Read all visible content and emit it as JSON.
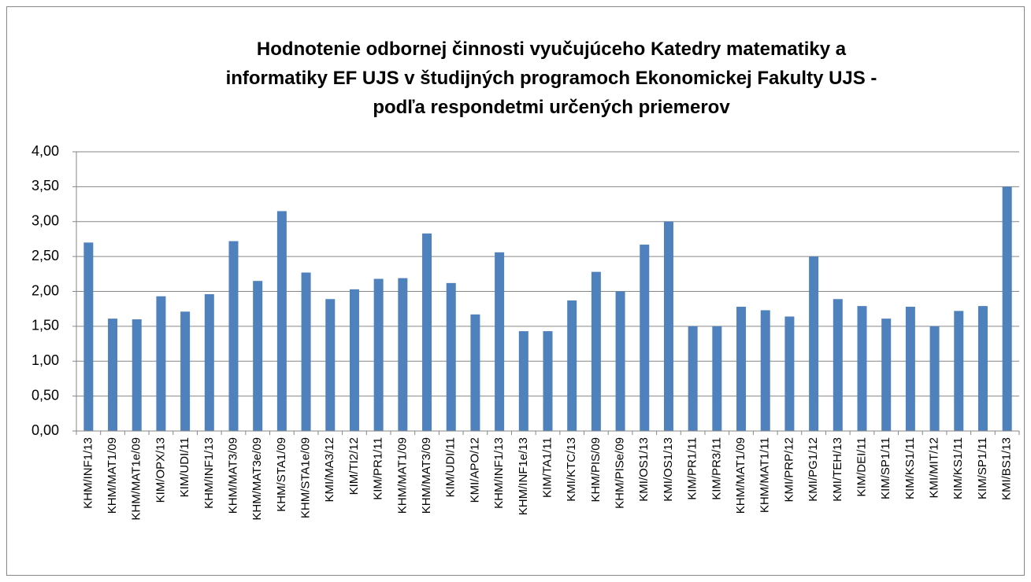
{
  "chart_data": {
    "type": "bar",
    "title": "Hodnotenie odbornej činnosti vyučujúceho Katedry matematiky a informatiky EF UJS v študijných programoch Ekonomickej Fakulty UJS - podľa respondetmi určených priemerov",
    "categories": [
      "KHM/INF1/13",
      "KHM/MAT1/09",
      "KHM/MAT1e/09",
      "KIM/OPX/13",
      "KIM/UDI/11",
      "KHM/INF1/13",
      "KHM/MAT3/09",
      "KHM/MAT3e/09",
      "KHM/STA1/09",
      "KHM/STA1e/09",
      "KMI/MA3/12",
      "KIM/TI2/12",
      "KIM/PR1/11",
      "KHM/MAT1/09",
      "KHM/MAT3/09",
      "KIM/UDI/11",
      "KMI/APO/12",
      "KHM/INF1/13",
      "KHM/INF1e/13",
      "KIM/TA1/11",
      "KMI/KTC/13",
      "KHM/PIS/09",
      "KHM/PISe/09",
      "KMI/OS1/13",
      "KMI/OS1/13",
      "KIM/PR1/11",
      "KIM/PR3/11",
      "KHM/MAT1/09",
      "KHM/MAT1/11",
      "KMI/PRP/12",
      "KMI/PG1/12",
      "KMI/TEH/13",
      "KIM/DEI/11",
      "KIM/SP1/11",
      "KIM/KS1/11",
      "KMI/MIT/12",
      "KIM/KS1/11",
      "KIM/SP1/11",
      "KMI/BS1/13"
    ],
    "values": [
      2.7,
      1.61,
      1.6,
      1.93,
      1.71,
      1.96,
      2.72,
      2.15,
      3.15,
      2.27,
      1.89,
      2.03,
      2.18,
      2.19,
      2.83,
      2.12,
      1.67,
      2.56,
      1.43,
      1.43,
      1.87,
      2.28,
      2.0,
      2.67,
      3.0,
      1.5,
      1.5,
      1.78,
      1.73,
      1.64,
      2.5,
      1.89,
      1.79,
      1.61,
      1.78,
      1.5,
      1.72,
      1.79,
      3.5
    ],
    "color": "#4f81bd",
    "ylim": [
      0,
      4
    ],
    "yticks": [
      {
        "value": 0,
        "label": "0,00"
      },
      {
        "value": 0.5,
        "label": "0,50"
      },
      {
        "value": 1,
        "label": "1,00"
      },
      {
        "value": 1.5,
        "label": "1,50"
      },
      {
        "value": 2,
        "label": "2,00"
      },
      {
        "value": 2.5,
        "label": "2,50"
      },
      {
        "value": 3,
        "label": "3,00"
      },
      {
        "value": 3.5,
        "label": "3,50"
      },
      {
        "value": 4,
        "label": "4,00"
      }
    ],
    "grid": true
  }
}
